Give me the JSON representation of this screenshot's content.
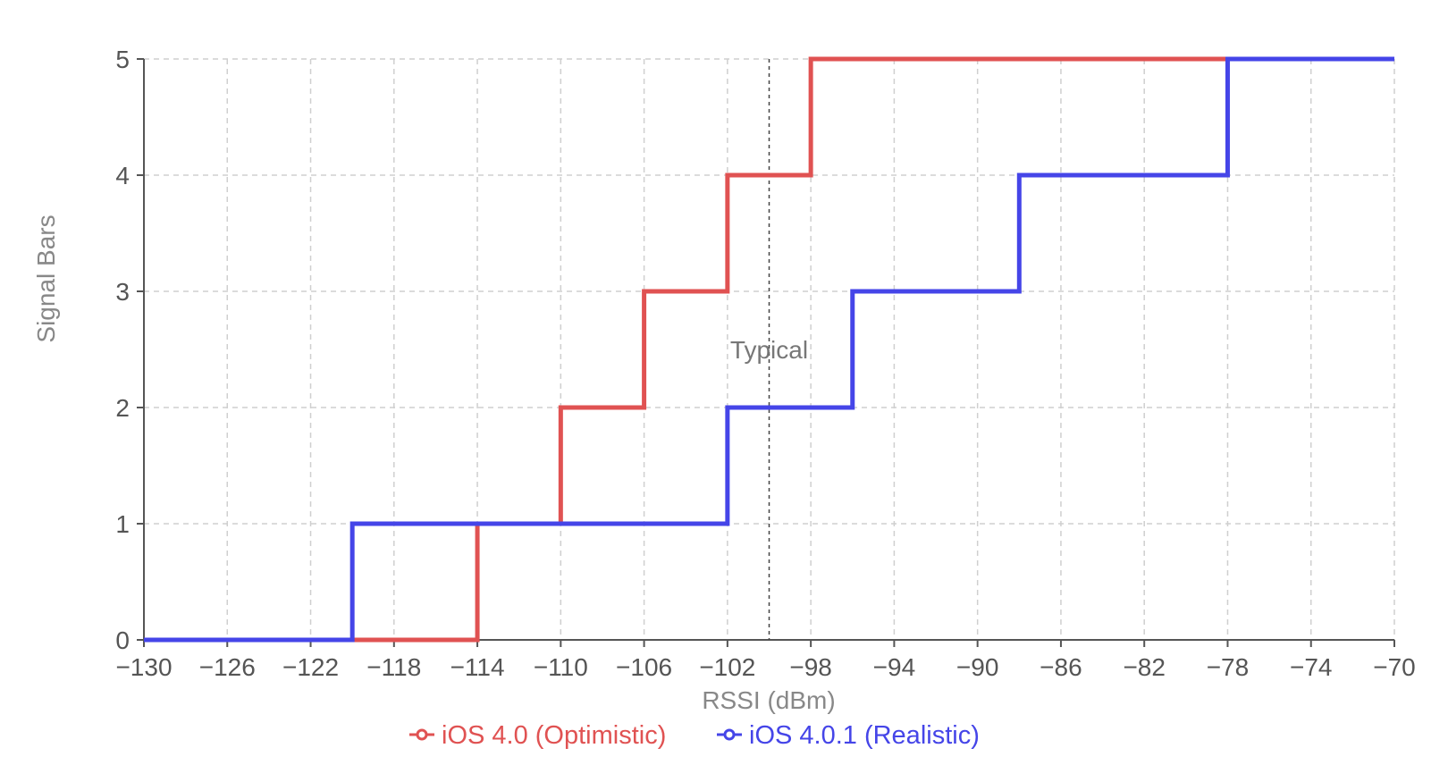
{
  "chart_data": {
    "type": "line",
    "step": "after",
    "xlabel": "RSSI (dBm)",
    "ylabel": "Signal Bars",
    "xlim": [
      -130,
      -70
    ],
    "ylim": [
      0,
      5
    ],
    "x_ticks": [
      -130,
      -126,
      -122,
      -118,
      -114,
      -110,
      -106,
      -102,
      -98,
      -94,
      -90,
      -86,
      -82,
      -78,
      -74,
      -70
    ],
    "y_ticks": [
      0,
      1,
      2,
      3,
      4,
      5
    ],
    "grid": true,
    "legend_position": "bottom",
    "series": [
      {
        "name": "iOS 4.0 (Optimistic)",
        "color": "#e05252",
        "points": [
          [
            -130,
            0
          ],
          [
            -114,
            1
          ],
          [
            -110,
            2
          ],
          [
            -106,
            3
          ],
          [
            -102,
            4
          ],
          [
            -98,
            5
          ],
          [
            -70,
            5
          ]
        ]
      },
      {
        "name": "iOS 4.0.1 (Realistic)",
        "color": "#4545e8",
        "points": [
          [
            -130,
            0
          ],
          [
            -120,
            1
          ],
          [
            -102,
            2
          ],
          [
            -96,
            3
          ],
          [
            -88,
            4
          ],
          [
            -78,
            5
          ],
          [
            -70,
            5
          ]
        ]
      }
    ],
    "annotations": [
      {
        "type": "vline",
        "x": -100,
        "label": "Typical",
        "label_y": 2.5
      }
    ]
  }
}
